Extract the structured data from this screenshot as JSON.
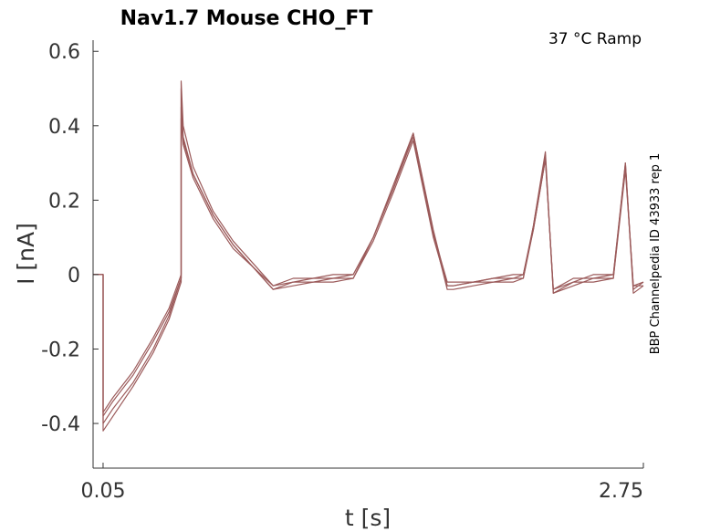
{
  "chart_data": {
    "type": "line",
    "title": "Nav1.7  Mouse  CHO_FT",
    "condition_label": "37 °C  Ramp",
    "side_label": "BBP Channelpedia ID 43933 rep 1",
    "xlabel": "t [s]",
    "ylabel": "I [nA]",
    "xlim": [
      0.0,
      2.75
    ],
    "ylim": [
      -0.52,
      0.63
    ],
    "xticks": [
      {
        "value": 0.05,
        "label": "0.05"
      },
      {
        "value": 2.75,
        "label": "2.75"
      }
    ],
    "yticks": [
      {
        "value": 0.6,
        "label": "0.6"
      },
      {
        "value": 0.4,
        "label": "0.4"
      },
      {
        "value": 0.2,
        "label": "0.2"
      },
      {
        "value": 0.0,
        "label": "0"
      },
      {
        "value": -0.2,
        "label": "-0.2"
      },
      {
        "value": -0.4,
        "label": "-0.4"
      }
    ],
    "grid": false,
    "legend": "none",
    "line_color": "#9b5a5a",
    "series": [
      {
        "x": [
          0.0,
          0.04,
          0.05,
          0.05,
          0.1,
          0.2,
          0.3,
          0.38,
          0.44,
          0.44,
          0.45,
          0.5,
          0.6,
          0.7,
          0.8,
          0.9,
          1.0,
          1.1,
          1.2,
          1.3,
          1.4,
          1.5,
          1.6,
          1.7,
          1.77,
          1.8,
          1.9,
          2.0,
          2.1,
          2.15,
          2.2,
          2.26,
          2.3,
          2.4,
          2.45,
          2.5,
          2.6,
          2.66,
          2.7,
          2.75
        ],
        "values": [
          0.0,
          0.0,
          0.0,
          -0.37,
          -0.33,
          -0.26,
          -0.17,
          -0.09,
          0.0,
          0.5,
          0.37,
          0.27,
          0.16,
          0.08,
          0.02,
          -0.03,
          -0.01,
          -0.01,
          0.0,
          0.0,
          0.1,
          0.23,
          0.37,
          0.11,
          -0.02,
          -0.02,
          -0.02,
          -0.01,
          0.0,
          0.0,
          0.12,
          0.31,
          -0.04,
          -0.01,
          -0.01,
          0.0,
          0.0,
          0.29,
          -0.03,
          -0.02
        ]
      },
      {
        "x": [
          0.0,
          0.04,
          0.05,
          0.05,
          0.1,
          0.2,
          0.3,
          0.38,
          0.44,
          0.44,
          0.45,
          0.5,
          0.6,
          0.7,
          0.8,
          0.9,
          1.0,
          1.1,
          1.2,
          1.3,
          1.4,
          1.5,
          1.6,
          1.7,
          1.77,
          1.8,
          1.9,
          2.0,
          2.1,
          2.15,
          2.2,
          2.26,
          2.3,
          2.4,
          2.45,
          2.5,
          2.6,
          2.66,
          2.7,
          2.75
        ],
        "values": [
          0.0,
          0.0,
          0.0,
          -0.38,
          -0.34,
          -0.27,
          -0.18,
          -0.1,
          -0.01,
          0.52,
          0.4,
          0.29,
          0.17,
          0.09,
          0.03,
          -0.03,
          -0.02,
          -0.01,
          -0.01,
          0.0,
          0.1,
          0.24,
          0.38,
          0.12,
          -0.03,
          -0.03,
          -0.02,
          -0.01,
          -0.01,
          0.0,
          0.13,
          0.32,
          -0.05,
          -0.02,
          -0.01,
          -0.01,
          0.0,
          0.3,
          -0.04,
          -0.02
        ]
      },
      {
        "x": [
          0.0,
          0.04,
          0.05,
          0.05,
          0.1,
          0.2,
          0.3,
          0.38,
          0.44,
          0.44,
          0.45,
          0.5,
          0.6,
          0.7,
          0.8,
          0.9,
          1.0,
          1.1,
          1.2,
          1.3,
          1.4,
          1.5,
          1.6,
          1.7,
          1.77,
          1.8,
          1.9,
          2.0,
          2.1,
          2.15,
          2.2,
          2.26,
          2.3,
          2.4,
          2.45,
          2.5,
          2.6,
          2.66,
          2.7,
          2.75
        ],
        "values": [
          0.0,
          0.0,
          0.0,
          -0.4,
          -0.36,
          -0.29,
          -0.2,
          -0.11,
          -0.01,
          0.42,
          0.35,
          0.26,
          0.15,
          0.07,
          0.02,
          -0.04,
          -0.02,
          -0.02,
          -0.01,
          -0.01,
          0.09,
          0.22,
          0.36,
          0.1,
          -0.03,
          -0.03,
          -0.02,
          -0.02,
          -0.01,
          -0.01,
          0.12,
          0.31,
          -0.04,
          -0.02,
          -0.02,
          -0.01,
          -0.01,
          0.28,
          -0.03,
          -0.03
        ]
      },
      {
        "x": [
          0.0,
          0.04,
          0.05,
          0.05,
          0.1,
          0.2,
          0.3,
          0.38,
          0.44,
          0.44,
          0.45,
          0.5,
          0.6,
          0.7,
          0.8,
          0.9,
          1.0,
          1.1,
          1.2,
          1.3,
          1.4,
          1.5,
          1.6,
          1.7,
          1.77,
          1.8,
          1.9,
          2.0,
          2.1,
          2.15,
          2.2,
          2.26,
          2.3,
          2.4,
          2.45,
          2.5,
          2.6,
          2.66,
          2.7,
          2.75
        ],
        "values": [
          0.0,
          0.0,
          0.0,
          -0.42,
          -0.38,
          -0.3,
          -0.21,
          -0.12,
          -0.02,
          0.45,
          0.36,
          0.27,
          0.16,
          0.08,
          0.02,
          -0.04,
          -0.03,
          -0.02,
          -0.02,
          -0.01,
          0.1,
          0.23,
          0.38,
          0.11,
          -0.04,
          -0.04,
          -0.03,
          -0.02,
          -0.02,
          -0.01,
          0.13,
          0.33,
          -0.05,
          -0.03,
          -0.02,
          -0.02,
          -0.01,
          0.3,
          -0.05,
          -0.03
        ]
      }
    ]
  }
}
